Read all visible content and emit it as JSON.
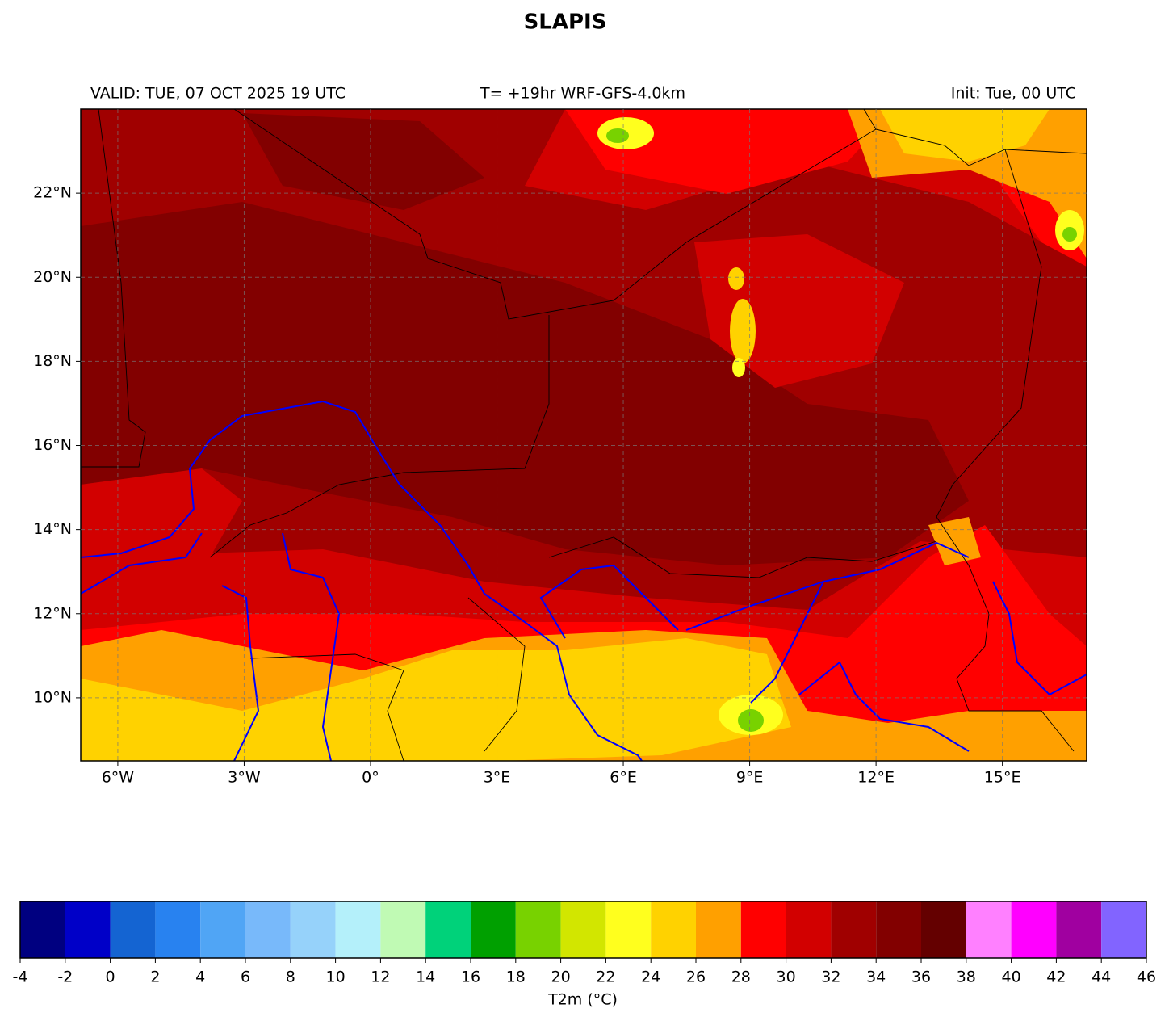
{
  "header": {
    "title": "SLAPIS",
    "valid": "VALID: TUE, 07 OCT 2025 19 UTC",
    "run": "T= +19hr WRF-GFS-4.0km",
    "init": "Init: Tue, 00 UTC"
  },
  "map": {
    "xlim": [
      -6.88,
      17
    ],
    "ylim": [
      8.5,
      24
    ],
    "grid": true,
    "xticks": [
      {
        "value": -6,
        "label": "6°W"
      },
      {
        "value": -3,
        "label": "3°W"
      },
      {
        "value": 0,
        "label": "0°"
      },
      {
        "value": 3,
        "label": "3°E"
      },
      {
        "value": 6,
        "label": "6°E"
      },
      {
        "value": 9,
        "label": "9°E"
      },
      {
        "value": 12,
        "label": "12°E"
      },
      {
        "value": 15,
        "label": "15°E"
      }
    ],
    "yticks": [
      {
        "value": 10,
        "label": "10°N"
      },
      {
        "value": 12,
        "label": "12°N"
      },
      {
        "value": 14,
        "label": "14°N"
      },
      {
        "value": 16,
        "label": "16°N"
      },
      {
        "value": 18,
        "label": "18°N"
      },
      {
        "value": 20,
        "label": "20°N"
      },
      {
        "value": 22,
        "label": "22°N"
      }
    ]
  },
  "colorbar": {
    "label": "T2m (°C)",
    "ticks": [
      -4,
      -2,
      0,
      2,
      4,
      6,
      8,
      10,
      12,
      14,
      16,
      18,
      20,
      22,
      24,
      26,
      28,
      30,
      32,
      34,
      36,
      38,
      40,
      42,
      44,
      46
    ],
    "colors": [
      "#000080",
      "#0000c8",
      "#1464d2",
      "#2882f0",
      "#50a5f5",
      "#78b9fa",
      "#96d2fa",
      "#b4f0fa",
      "#c0fab4",
      "#00d27a",
      "#00a000",
      "#78d200",
      "#d2e600",
      "#ffff1e",
      "#ffd200",
      "#ffa000",
      "#ff0000",
      "#d20000",
      "#a00000",
      "#820000",
      "#640000",
      "#ff80ff",
      "#ff00ff",
      "#a000a0",
      "#8264ff"
    ]
  }
}
